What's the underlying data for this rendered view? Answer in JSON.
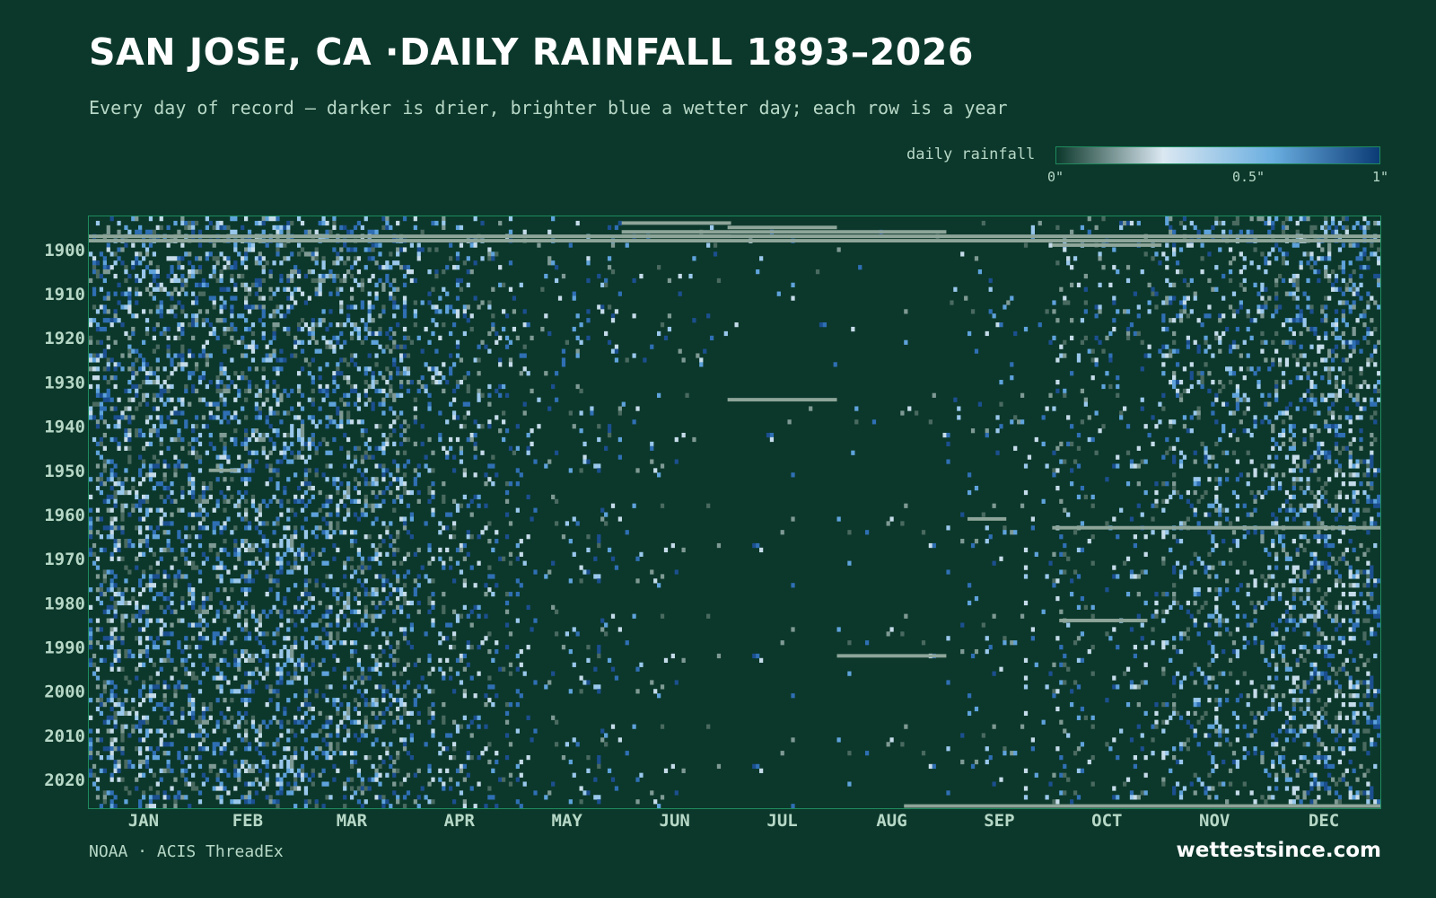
{
  "title": "SAN JOSE, CA ·DAILY RAINFALL 1893–2026",
  "subtitle": "Every day of record — darker is drier, brighter blue a wetter day; each row is a year",
  "legend": {
    "label": "daily rainfall",
    "ticks": [
      "0\"",
      "0.5\"",
      "1\""
    ],
    "stops": [
      "#0c382b",
      "#dbe8f2",
      "#6aaee0",
      "#0b3b75"
    ]
  },
  "colors": {
    "background": "#0c382b",
    "frame": "#1f8a5e",
    "missing": "#8ea59a",
    "label": "#b7d8c7"
  },
  "footer": {
    "source": "NOAA · ACIS ThreadEx",
    "brand": "wettestsince.com"
  },
  "chart_data": {
    "type": "heatmap",
    "title": "SAN JOSE, CA ·DAILY RAINFALL 1893–2026",
    "x_axis": {
      "unit": "day of year",
      "range": [
        1,
        366
      ],
      "tick_labels": [
        "JAN",
        "FEB",
        "MAR",
        "APR",
        "MAY",
        "JUN",
        "JUL",
        "AUG",
        "SEP",
        "OCT",
        "NOV",
        "DEC"
      ]
    },
    "y_axis": {
      "unit": "year",
      "range": [
        1893,
        2026
      ],
      "tick_values": [
        1900,
        1910,
        1920,
        1930,
        1940,
        1950,
        1960,
        1970,
        1980,
        1990,
        2000,
        2010,
        2020
      ],
      "tick_labels": [
        "1900",
        "1910",
        "1920",
        "1930",
        "1940",
        "1950",
        "1960",
        "1970",
        "1980",
        "1990",
        "2000",
        "2010",
        "2020"
      ]
    },
    "value_scale": {
      "unit": "inches",
      "range": [
        0,
        1
      ]
    },
    "monthly_wet_day_fraction": [
      0.3,
      0.29,
      0.27,
      0.16,
      0.07,
      0.03,
      0.01,
      0.01,
      0.03,
      0.08,
      0.18,
      0.27
    ],
    "missing_spans": [
      {
        "year": 1894,
        "start_day": 152,
        "end_day": 182
      },
      {
        "year": 1895,
        "start_day": 182,
        "end_day": 212
      },
      {
        "year": 1896,
        "start_day": 152,
        "end_day": 243
      },
      {
        "year": 1897,
        "start_day": 152,
        "end_day": 182
      },
      {
        "year": 1897,
        "start_day": 1,
        "end_day": 366
      },
      {
        "year": 1898,
        "start_day": 1,
        "end_day": 366
      },
      {
        "year": 1899,
        "start_day": 274,
        "end_day": 304
      },
      {
        "year": 1934,
        "start_day": 182,
        "end_day": 212
      },
      {
        "year": 1950,
        "start_day": 35,
        "end_day": 42
      },
      {
        "year": 1961,
        "start_day": 250,
        "end_day": 260
      },
      {
        "year": 1963,
        "start_day": 274,
        "end_day": 366
      },
      {
        "year": 1984,
        "start_day": 276,
        "end_day": 300
      },
      {
        "year": 1992,
        "start_day": 213,
        "end_day": 243
      },
      {
        "year": 2026,
        "start_day": 232,
        "end_day": 366
      }
    ]
  }
}
